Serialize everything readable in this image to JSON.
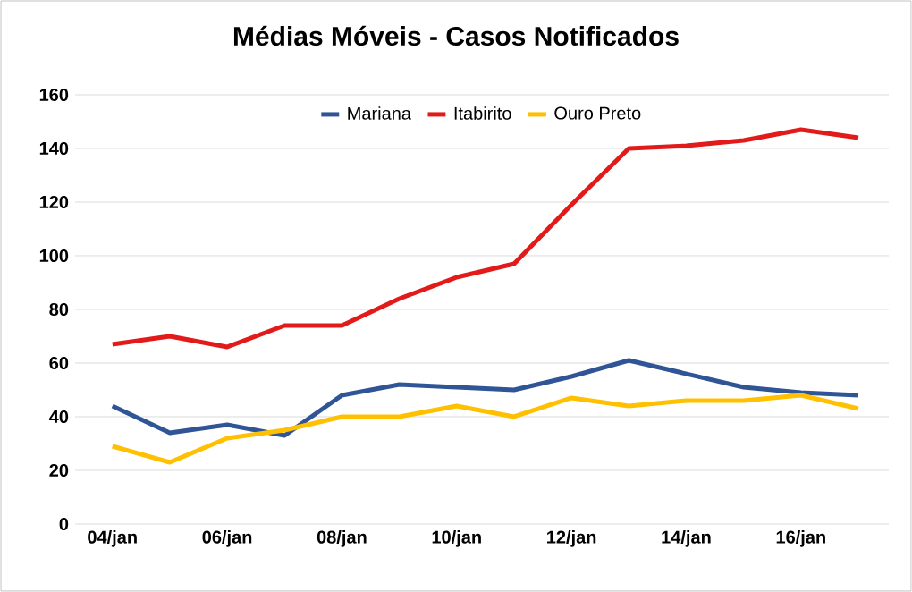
{
  "chart_data": {
    "type": "line",
    "title": "Médias Móveis - Casos Notificados",
    "categories": [
      "04/jan",
      null,
      "06/jan",
      null,
      "08/jan",
      null,
      "10/jan",
      null,
      "12/jan",
      null,
      "14/jan",
      null,
      "16/jan",
      null
    ],
    "series": [
      {
        "name": "Mariana",
        "color": "#2f5597",
        "values": [
          44,
          34,
          37,
          33,
          48,
          52,
          51,
          50,
          55,
          61,
          56,
          51,
          49,
          48
        ]
      },
      {
        "name": "Itabirito",
        "color": "#e31a1a",
        "values": [
          67,
          70,
          66,
          74,
          74,
          84,
          92,
          97,
          119,
          140,
          141,
          143,
          147,
          144
        ]
      },
      {
        "name": "Ouro Preto",
        "color": "#ffc000",
        "values": [
          29,
          23,
          32,
          35,
          40,
          40,
          44,
          40,
          47,
          44,
          46,
          46,
          48,
          43
        ]
      }
    ],
    "ylim": [
      0,
      160
    ],
    "yticks": [
      0,
      20,
      40,
      60,
      80,
      100,
      120,
      140,
      160
    ],
    "grid": "y",
    "legend": "top",
    "marker": "none",
    "line_style": "solid"
  }
}
